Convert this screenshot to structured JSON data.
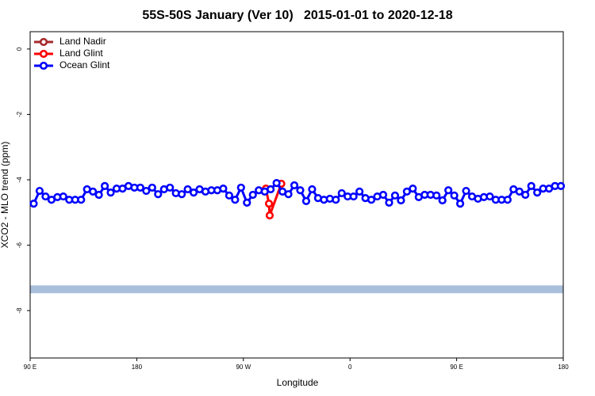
{
  "chart_data": {
    "type": "line",
    "title": "55S-50S January (Ver 10)   2015-01-01 to 2020-12-18",
    "x_label": "Longitude",
    "y_label": "XCO2 - MLO trend (ppm)",
    "xlim": [
      90,
      540
    ],
    "xticks": [
      {
        "value": 90,
        "label": "90 E"
      },
      180,
      {
        "value": 270,
        "label": "90 W"
      },
      {
        "value": 360,
        "label": "0"
      },
      {
        "value": 450,
        "label": "90 E"
      },
      {
        "value": 540,
        "label": "180"
      }
    ],
    "ylim": [
      -9.45,
      0.53
    ],
    "yticks": [
      0,
      -2,
      -4,
      -6,
      -8
    ],
    "legend": "top-left",
    "band": {
      "ylim": [
        -7.47,
        -7.23
      ],
      "color": "#a9bfdc"
    },
    "series": [
      {
        "name": "Land Nadir",
        "color": "#a52a2a",
        "x": [],
        "values": []
      },
      {
        "name": "Land Glint",
        "color": "#ff0000",
        "x": [
          289,
          291.6,
          292.2,
          302
        ],
        "values": [
          -4.27,
          -4.73,
          -5.09,
          -4.12
        ]
      },
      {
        "name": "Ocean Glint",
        "color": "#0000ff",
        "x": [
          93,
          98,
          103,
          108,
          113,
          118,
          123,
          128,
          133,
          138,
          143,
          148,
          153,
          158,
          163,
          168,
          173,
          178,
          183,
          188,
          193,
          198,
          203,
          208,
          213,
          218,
          223,
          228,
          233,
          238,
          243,
          248,
          253,
          258,
          263,
          268,
          273,
          278,
          283,
          288,
          293,
          298,
          303,
          308,
          313,
          318,
          323,
          328,
          333,
          338,
          343,
          348,
          353,
          358,
          363,
          368,
          373,
          378,
          383,
          388,
          393,
          398,
          403,
          408,
          413,
          418,
          423,
          428,
          433,
          438,
          443,
          448,
          453,
          458,
          463,
          468,
          473,
          478,
          483,
          488,
          493,
          498,
          503,
          508,
          513,
          518,
          523,
          528,
          533,
          538
        ],
        "values": [
          -4.73,
          -4.34,
          -4.51,
          -4.61,
          -4.53,
          -4.51,
          -4.61,
          -4.61,
          -4.61,
          -4.29,
          -4.36,
          -4.46,
          -4.19,
          -4.39,
          -4.27,
          -4.27,
          -4.19,
          -4.24,
          -4.24,
          -4.34,
          -4.24,
          -4.44,
          -4.29,
          -4.24,
          -4.41,
          -4.44,
          -4.29,
          -4.39,
          -4.29,
          -4.36,
          -4.32,
          -4.32,
          -4.27,
          -4.48,
          -4.61,
          -4.24,
          -4.7,
          -4.46,
          -4.32,
          -4.36,
          -4.29,
          -4.1,
          -4.36,
          -4.44,
          -4.17,
          -4.32,
          -4.65,
          -4.29,
          -4.56,
          -4.61,
          -4.58,
          -4.61,
          -4.41,
          -4.51,
          -4.51,
          -4.36,
          -4.56,
          -4.61,
          -4.51,
          -4.46,
          -4.7,
          -4.48,
          -4.63,
          -4.36,
          -4.27,
          -4.53,
          -4.46,
          -4.46,
          -4.48,
          -4.63,
          -4.32,
          -4.48,
          -4.73,
          -4.34,
          -4.51,
          -4.58,
          -4.53,
          -4.51,
          -4.61,
          -4.61,
          -4.61,
          -4.29,
          -4.36,
          -4.46,
          -4.19,
          -4.39,
          -4.27,
          -4.27,
          -4.19,
          -4.19
        ]
      }
    ]
  }
}
